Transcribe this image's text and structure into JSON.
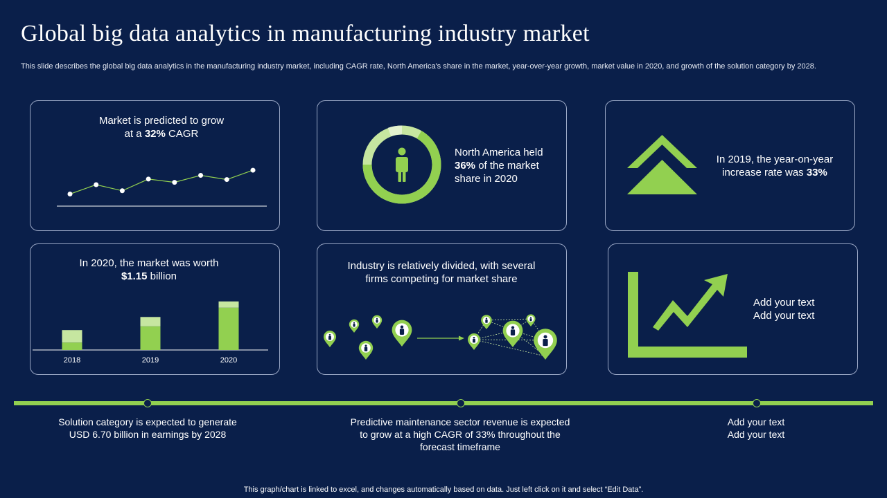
{
  "title": "Global big data analytics in manufacturing industry market",
  "subtitle": "This slide describes the global big data analytics in the manufacturing industry market, including CAGR rate, North America's share in the market, year-over-year growth, market value in 2020, and growth of the solution category by 2028.",
  "colors": {
    "background": "#0a1f4a",
    "accent": "#92d050",
    "accent_light": "#c6e6a0",
    "border": "#9ba8c6"
  },
  "cards": {
    "cagr": {
      "line1": "Market is predicted to grow",
      "line2_pre": "at a ",
      "line2_bold": "32%",
      "line2_post": " CAGR"
    },
    "north_america": {
      "line1": "North America held",
      "line2_bold": "36%",
      "line2_post": " of the market",
      "line3": "share in 2020",
      "icon": "person-icon"
    },
    "yoy": {
      "line1": "In 2019, the year-on-year",
      "line2_pre": "increase rate was ",
      "line2_bold": "33%",
      "icon": "double-chevron-up-icon"
    },
    "market_worth": {
      "line1": "In 2020, the market was worth",
      "line2_bold": "$1.15",
      "line2_post": " billion"
    },
    "divided": {
      "line1": "Industry  is relatively divided, with several",
      "line2": "firms competing for market share",
      "icon": "map-pin-icon"
    },
    "placeholder": {
      "line1": "Add your text",
      "line2": "Add your text",
      "icon": "growth-arrow-icon"
    }
  },
  "chart_data": [
    {
      "type": "line",
      "x": [
        1,
        2,
        3,
        4,
        5,
        6,
        7,
        8
      ],
      "values": [
        2,
        4,
        2.7,
        5.2,
        4.5,
        6,
        5.1,
        7.1
      ],
      "xlabel": "",
      "ylabel": ""
    },
    {
      "type": "bar",
      "categories": [
        "2018",
        "2019",
        "2020"
      ],
      "series": [
        {
          "values": [
            12,
            38,
            68
          ]
        },
        {
          "values": [
            20,
            15,
            10
          ]
        }
      ],
      "stacked": true
    }
  ],
  "timeline": [
    {
      "line1": "Solution category is expected to generate",
      "line2": "USD 6.70 billion in earnings by 2028"
    },
    {
      "line1": "Predictive maintenance sector revenue is expected",
      "line2": "to grow at a high CAGR of 33% throughout the",
      "line3": "forecast timeframe"
    },
    {
      "line1": "Add your text",
      "line2": "Add your text"
    }
  ],
  "footer": "This graph/chart is linked to excel,  and changes automatically based on data. Just left click on it and select “Edit Data”."
}
